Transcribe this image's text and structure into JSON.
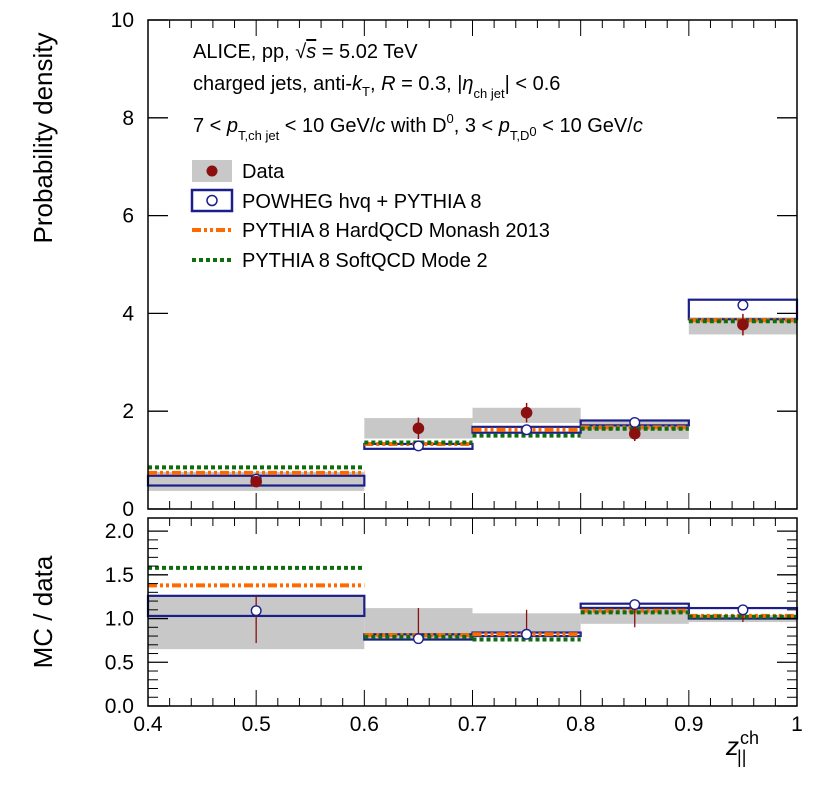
{
  "chart_data": [
    {
      "type": "step",
      "panel": "top",
      "ylabel": "Probability density",
      "ylim": [
        0,
        10
      ],
      "yticks": [
        "0",
        "2",
        "4",
        "6",
        "8",
        "10"
      ],
      "xlim": [
        0.4,
        1.0
      ],
      "bins": [
        [
          0.4,
          0.6
        ],
        [
          0.6,
          0.7
        ],
        [
          0.7,
          0.8
        ],
        [
          0.8,
          0.9
        ],
        [
          0.9,
          1.0
        ]
      ],
      "annotations": {
        "line1": "ALICE, pp, √s = 5.02 TeV",
        "line2": "charged jets, anti-kT, R = 0.3, |ηch jet| < 0.6",
        "line3": "7 < pT,ch jet < 10 GeV/c with D0, 3 < pT,D0 < 10 GeV/c"
      },
      "legend": [
        "Data",
        "POWHEG hvq + PYTHIA 8",
        "PYTHIA 8 HardQCD Monash 2013",
        "PYTHIA 8 SoftQCD Mode 2"
      ],
      "series": [
        {
          "name": "Data",
          "x": [
            0.5,
            0.65,
            0.75,
            0.85,
            0.95
          ],
          "values": [
            0.56,
            1.65,
            1.97,
            1.54,
            3.77
          ],
          "stat_err": [
            0.1,
            0.22,
            0.2,
            0.15,
            0.22
          ],
          "syst_low": [
            0.37,
            1.44,
            1.76,
            1.43,
            3.57
          ],
          "syst_high": [
            0.76,
            1.86,
            2.07,
            1.8,
            3.92
          ]
        },
        {
          "name": "POWHEG hvq + PYTHIA 8",
          "x": [
            0.5,
            0.65,
            0.75,
            0.85,
            0.95
          ],
          "values": [
            0.61,
            1.29,
            1.62,
            1.77,
            4.17
          ],
          "band_low": [
            0.48,
            1.23,
            1.56,
            1.71,
            3.88
          ],
          "band_high": [
            0.68,
            1.33,
            1.68,
            1.81,
            4.28
          ]
        },
        {
          "name": "PYTHIA 8 HardQCD Monash 2013",
          "values": [
            0.74,
            1.33,
            1.62,
            1.67,
            3.86
          ]
        },
        {
          "name": "PYTHIA 8 SoftQCD Mode 2",
          "values": [
            0.85,
            1.36,
            1.5,
            1.64,
            3.84
          ]
        }
      ]
    },
    {
      "type": "step",
      "panel": "bottom",
      "ylabel": "MC / data",
      "xlabel": "z||ch",
      "ylim": [
        0,
        2.15
      ],
      "yticks": [
        "0.0",
        "0.5",
        "1.0",
        "1.5",
        "2.0"
      ],
      "xlim": [
        0.4,
        1.0
      ],
      "xticks": [
        "0.4",
        "0.5",
        "0.6",
        "0.7",
        "0.8",
        "0.9",
        "1"
      ],
      "bins": [
        [
          0.4,
          0.6
        ],
        [
          0.6,
          0.7
        ],
        [
          0.7,
          0.8
        ],
        [
          0.8,
          0.9
        ],
        [
          0.9,
          1.0
        ]
      ],
      "data_unc_low": [
        0.65,
        0.77,
        0.84,
        0.94,
        0.96
      ],
      "data_unc_high": [
        1.26,
        1.12,
        1.06,
        1.14,
        1.04
      ],
      "data_err_low": [
        0.72,
        0.8,
        0.8,
        0.9,
        0.96
      ],
      "data_err_high": [
        1.26,
        1.12,
        1.1,
        1.14,
        1.04
      ],
      "series": [
        {
          "name": "POWHEG hvq + PYTHIA 8",
          "x": [
            0.5,
            0.65,
            0.75,
            0.85,
            0.95
          ],
          "values": [
            1.09,
            0.77,
            0.82,
            1.16,
            1.1
          ],
          "band_low": [
            1.03,
            0.76,
            0.8,
            1.12,
            1.0
          ],
          "band_high": [
            1.26,
            0.82,
            0.84,
            1.17,
            1.12
          ]
        },
        {
          "name": "PYTHIA 8 HardQCD Monash 2013",
          "values": [
            1.38,
            0.81,
            0.82,
            1.09,
            1.03
          ]
        },
        {
          "name": "PYTHIA 8 SoftQCD Mode 2",
          "values": [
            1.58,
            0.79,
            0.76,
            1.07,
            1.02
          ]
        }
      ]
    }
  ],
  "colors": {
    "data": "#8b0f0f",
    "powheg": "#1b1f8a",
    "hardqcd": "#ff6a00",
    "softqcd": "#0e6e0e",
    "syst": "#c8c8c8"
  }
}
